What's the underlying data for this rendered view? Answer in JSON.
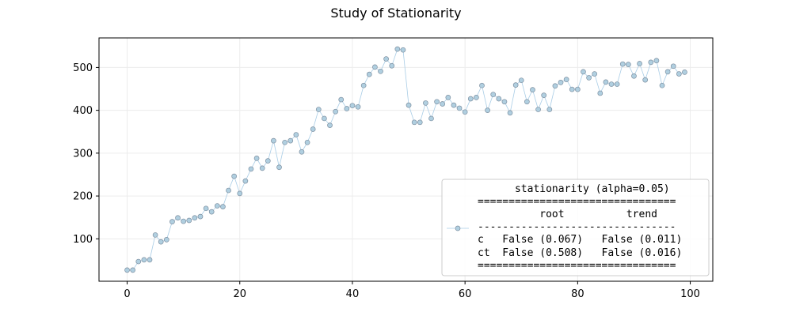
{
  "chart_data": {
    "type": "line",
    "title": "Study of Stationarity",
    "xlabel": "",
    "ylabel": "",
    "xlim": [
      -5,
      104
    ],
    "ylim": [
      1,
      569
    ],
    "xticks": [
      0,
      20,
      40,
      60,
      80,
      100
    ],
    "yticks": [
      100,
      200,
      300,
      400,
      500
    ],
    "grid": true,
    "series": [
      {
        "color": "#a9cde6",
        "marker_color": "#b0cfe0",
        "values": [
          27,
          27,
          47,
          51,
          51,
          109,
          93,
          98,
          140,
          149,
          141,
          143,
          149,
          152,
          171,
          163,
          177,
          175,
          213,
          246,
          206,
          235,
          263,
          288,
          265,
          282,
          329,
          267,
          325,
          329,
          343,
          303,
          325,
          356,
          402,
          381,
          365,
          397,
          425,
          404,
          411,
          408,
          458,
          484,
          501,
          491,
          520,
          504,
          543,
          541,
          412,
          372,
          372,
          417,
          381,
          420,
          415,
          430,
          412,
          405,
          396,
          427,
          430,
          458,
          400,
          437,
          427,
          420,
          394,
          459,
          470,
          420,
          448,
          402,
          435,
          402,
          457,
          465,
          472,
          449,
          449,
          490,
          476,
          485,
          440,
          466,
          461,
          461,
          508,
          507,
          480,
          509,
          471,
          512,
          516,
          458,
          490,
          503,
          485,
          489
        ]
      }
    ],
    "legend": {
      "position": "lower right",
      "lines": [
        "      stationarity (alpha=0.05)",
        "================================",
        "          root          trend",
        "--------------------------------",
        "c   False (0.067)   False (0.011)",
        "ct  False (0.508)   False (0.016)",
        "================================"
      ]
    }
  }
}
